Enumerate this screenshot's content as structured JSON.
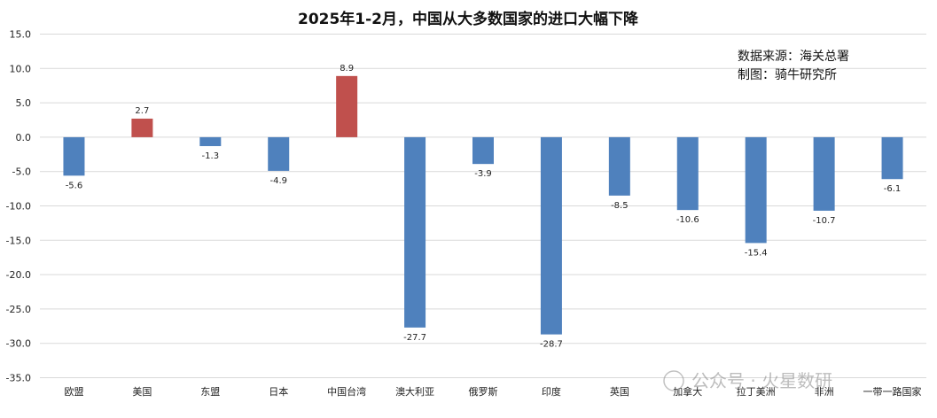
{
  "chart_data": {
    "type": "bar",
    "title": "2025年1-2月，中国从大多数国家的进口大幅下降",
    "categories": [
      "欧盟",
      "美国",
      "东盟",
      "日本",
      "中国台湾",
      "澳大利亚",
      "俄罗斯",
      "印度",
      "英国",
      "加拿大",
      "拉丁美洲",
      "非洲",
      "一带一路国家"
    ],
    "values": [
      -5.6,
      2.7,
      -1.3,
      -4.9,
      8.9,
      -27.7,
      -3.9,
      -28.7,
      -8.5,
      -10.6,
      -15.4,
      -10.7,
      -6.1
    ],
    "data_labels": [
      "-5.6",
      "2.7",
      "-1.3",
      "-4.9",
      "8.9",
      "-27.7",
      "-3.9",
      "-28.7",
      "-8.5",
      "-10.6",
      "-15.4",
      "-10.7",
      "-6.1"
    ],
    "ylim": [
      -35,
      15
    ],
    "yticks": [
      "15.0",
      "10.0",
      "5.0",
      "0.0",
      "-5.0",
      "-10.0",
      "-15.0",
      "-20.0",
      "-25.0",
      "-30.0",
      "-35.0"
    ],
    "grid": true,
    "xlabel": "",
    "ylabel": "",
    "colors": {
      "positive": "#c0504d",
      "negative": "#4f81bd",
      "grid": "#d9d9d9"
    }
  },
  "source_note": "数据来源：海关总署",
  "maker_note": "制图：骑牛研究所",
  "watermark": "公众号 · 火星数研"
}
